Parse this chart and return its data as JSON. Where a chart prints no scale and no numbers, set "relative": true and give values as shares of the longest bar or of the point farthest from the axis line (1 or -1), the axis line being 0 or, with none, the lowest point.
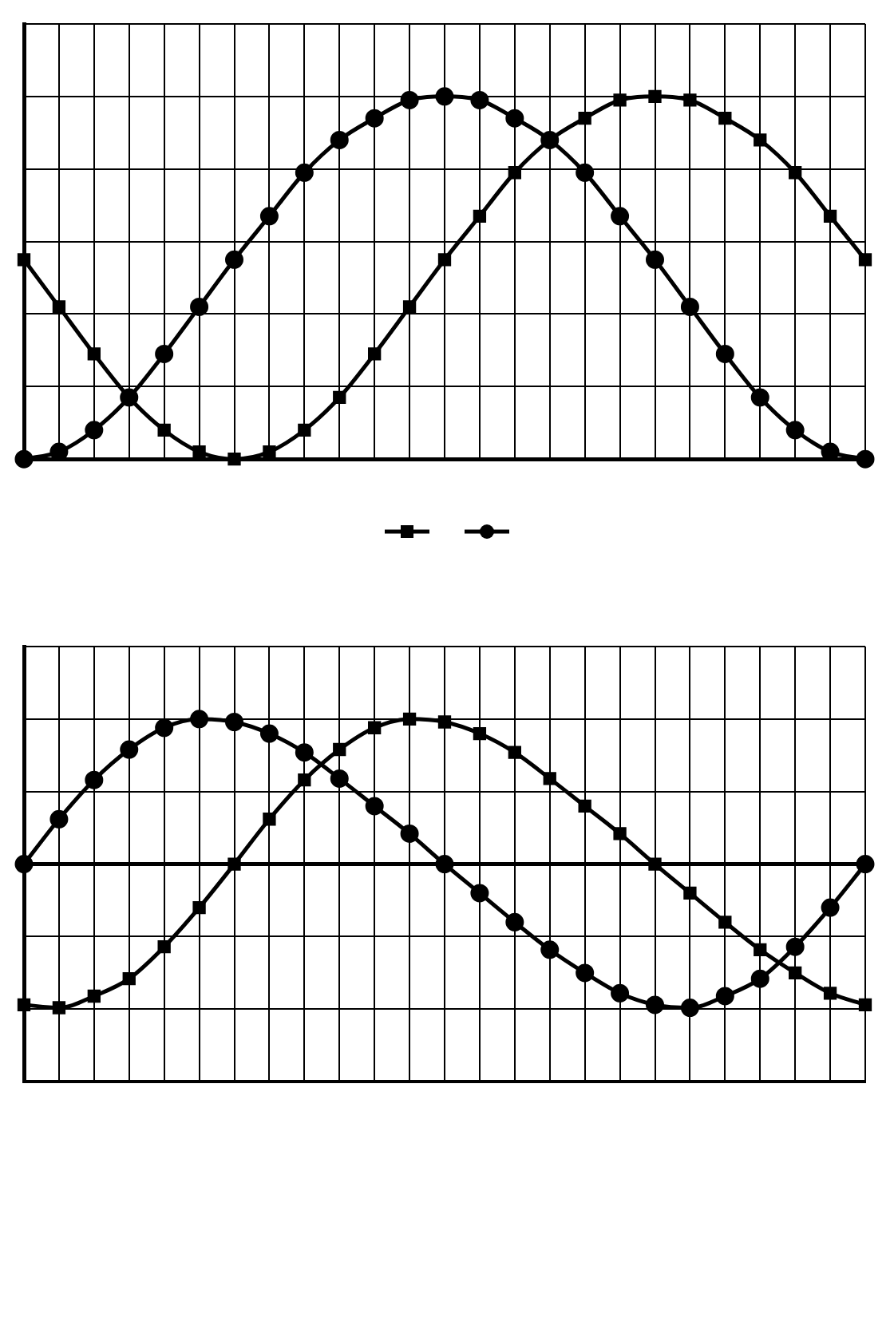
{
  "chart_data": [
    {
      "type": "line",
      "relative": true,
      "grid": true,
      "categories": [
        null,
        null,
        null,
        null,
        null,
        null,
        null,
        null,
        null,
        null,
        null,
        null,
        null,
        null,
        null,
        null,
        null,
        null,
        null,
        null,
        null,
        null,
        null,
        null,
        null
      ],
      "series": [
        {
          "color": "#000000",
          "marker": "square",
          "values": [
            0.55,
            0.42,
            0.29,
            0.17,
            0.08,
            0.02,
            0,
            0.02,
            0.08,
            0.17,
            0.29,
            0.42,
            0.55,
            0.67,
            0.79,
            0.88,
            0.94,
            0.99,
            1,
            0.99,
            0.94,
            0.88,
            0.79,
            0.67,
            0.55
          ]
        },
        {
          "color": "#000000",
          "marker": "circle",
          "values": [
            0,
            0.02,
            0.08,
            0.17,
            0.29,
            0.42,
            0.55,
            0.67,
            0.79,
            0.88,
            0.94,
            0.99,
            1,
            0.99,
            0.94,
            0.88,
            0.79,
            0.67,
            0.55,
            0.42,
            0.29,
            0.17,
            0.08,
            0.02,
            0
          ]
        }
      ]
    },
    {
      "type": "line",
      "relative": true,
      "grid": true,
      "categories": [
        null,
        null,
        null,
        null,
        null,
        null,
        null,
        null,
        null,
        null,
        null,
        null,
        null,
        null,
        null,
        null,
        null,
        null,
        null,
        null,
        null,
        null,
        null,
        null,
        null
      ],
      "series": [
        {
          "color": "#000000",
          "marker": "circle",
          "values": [
            0,
            0.31,
            0.58,
            0.79,
            0.94,
            1,
            0.98,
            0.9,
            0.77,
            0.59,
            0.4,
            0.21,
            0,
            -0.2,
            -0.4,
            -0.59,
            -0.75,
            -0.89,
            -0.97,
            -0.99,
            -0.91,
            -0.79,
            -0.57,
            -0.3,
            0
          ]
        },
        {
          "color": "#000000",
          "marker": "square",
          "values": [
            -0.97,
            -0.99,
            -0.91,
            -0.79,
            -0.57,
            -0.3,
            0,
            0.31,
            0.58,
            0.79,
            0.94,
            1,
            0.98,
            0.9,
            0.77,
            0.59,
            0.4,
            0.21,
            0,
            -0.2,
            -0.4,
            -0.59,
            -0.75,
            -0.89,
            -0.97
          ]
        }
      ]
    }
  ]
}
